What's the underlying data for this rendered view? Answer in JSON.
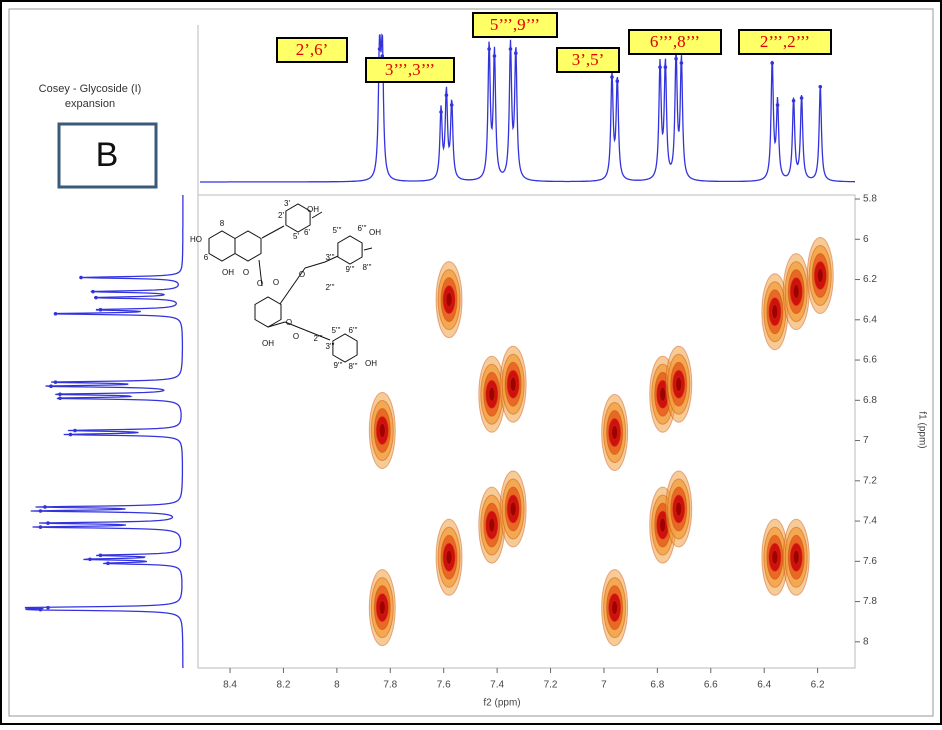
{
  "chart_data": {
    "type": "cosy",
    "panel_title": "Cosey - Glycoside (I)",
    "panel_subtitle": "expansion",
    "panel_letter": "B",
    "xlabel": "f2 (ppm)",
    "ylabel": "f1 (ppm)",
    "xlim": [
      8.52,
      6.06
    ],
    "ylim": [
      5.78,
      8.13
    ],
    "xticks": [
      8.4,
      8.2,
      8.0,
      7.8,
      7.6,
      7.4,
      7.2,
      7.0,
      6.8,
      6.6,
      6.4,
      6.2
    ],
    "yticks": [
      5.8,
      6.0,
      6.2,
      6.4,
      6.6,
      6.8,
      7.0,
      7.2,
      7.4,
      7.6,
      7.8,
      8.0
    ],
    "cross_peaks": {
      "x": [
        7.83,
        7.83,
        7.58,
        7.58,
        7.42,
        7.34,
        7.42,
        7.34,
        6.96,
        6.96,
        6.78,
        6.72,
        6.78,
        6.72,
        6.36,
        6.28,
        6.19,
        6.36,
        6.28
      ],
      "y": [
        6.95,
        7.83,
        6.3,
        7.58,
        6.77,
        6.72,
        7.42,
        7.34,
        6.96,
        7.83,
        6.77,
        6.72,
        7.42,
        7.34,
        6.36,
        6.26,
        6.18,
        7.58,
        7.58
      ]
    },
    "projection": {
      "ppm": [
        7.84,
        7.83,
        7.61,
        7.59,
        7.57,
        7.43,
        7.41,
        7.35,
        7.33,
        6.97,
        6.95,
        6.79,
        6.77,
        6.73,
        6.71,
        6.37,
        6.35,
        6.29,
        6.26,
        6.19
      ],
      "intensity": [
        0.95,
        0.9,
        0.5,
        0.62,
        0.55,
        0.95,
        0.9,
        0.95,
        0.92,
        0.75,
        0.72,
        0.82,
        0.82,
        0.88,
        0.85,
        0.85,
        0.55,
        0.58,
        0.6,
        0.68
      ]
    },
    "assignments": [
      "2’,6’",
      "3’’’,3’’’",
      "5’’’,9’’’",
      "3’,5’",
      "6’’’,8’’’",
      "2’’’,2’’’"
    ],
    "structure_labels": [
      "HO",
      "8",
      "6",
      "OH",
      "O",
      "3'",
      "OH",
      "2'",
      "6'",
      "5'",
      "O",
      "O",
      "O",
      "OH",
      "O",
      "5'''",
      "6'''",
      "OH",
      "3'''",
      "9'''",
      "8'''",
      "2'''",
      "O",
      "2'''",
      "5'''",
      "6'''",
      "3'''",
      "9'''",
      "8'''",
      "OH"
    ],
    "color_trace": "#3333dd",
    "color_peak_outer": "#f0a040",
    "color_peak_inner": "#d01010"
  }
}
